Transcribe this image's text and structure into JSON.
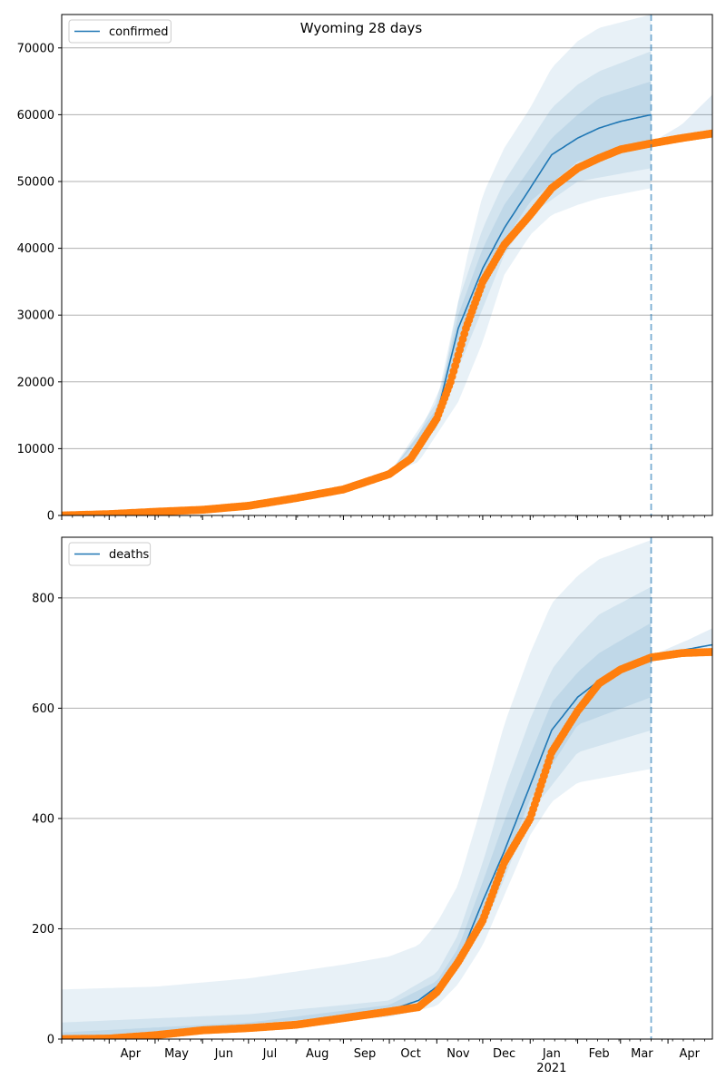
{
  "title": "Wyoming 28 days",
  "colors": {
    "line": "#1f77b4",
    "points": "#ff7f0e",
    "band": "#1f77b4",
    "grid": "#b0b0b0"
  },
  "chart_data": [
    {
      "type": "line",
      "legend": "confirmed",
      "legend_placement": "top-left",
      "grid": "horizontal",
      "x_range": [
        "2020-03-01",
        "2021-04-30"
      ],
      "forecast_start": "2021-03-21",
      "ylim": [
        0,
        75000
      ],
      "yticks": [
        0,
        10000,
        20000,
        30000,
        40000,
        50000,
        60000,
        70000
      ],
      "model_curve": [
        [
          "2020-03-01",
          0
        ],
        [
          "2020-04-01",
          300
        ],
        [
          "2020-05-01",
          600
        ],
        [
          "2020-06-01",
          900
        ],
        [
          "2020-07-01",
          1500
        ],
        [
          "2020-08-01",
          2700
        ],
        [
          "2020-09-01",
          4000
        ],
        [
          "2020-10-01",
          6300
        ],
        [
          "2020-10-15",
          9000
        ],
        [
          "2020-11-01",
          15000
        ],
        [
          "2020-11-15",
          28000
        ],
        [
          "2020-12-01",
          37000
        ],
        [
          "2020-12-15",
          43000
        ],
        [
          "2021-01-01",
          49000
        ],
        [
          "2021-01-15",
          54000
        ],
        [
          "2021-02-01",
          56500
        ],
        [
          "2021-02-15",
          58000
        ],
        [
          "2021-03-01",
          59000
        ],
        [
          "2021-03-21",
          60000
        ]
      ],
      "band_outer": {
        "low": [
          [
            "2020-10-01",
            6300
          ],
          [
            "2020-10-20",
            8000
          ],
          [
            "2020-11-15",
            17000
          ],
          [
            "2020-12-01",
            26000
          ],
          [
            "2020-12-15",
            36000
          ],
          [
            "2021-01-01",
            42000
          ],
          [
            "2021-01-15",
            45000
          ],
          [
            "2021-02-01",
            46500
          ],
          [
            "2021-02-15",
            47500
          ],
          [
            "2021-03-21",
            49000
          ]
        ],
        "high": [
          [
            "2020-10-01",
            6300
          ],
          [
            "2020-10-20",
            12000
          ],
          [
            "2020-11-05",
            20000
          ],
          [
            "2020-11-20",
            38000
          ],
          [
            "2020-12-01",
            48000
          ],
          [
            "2020-12-15",
            55000
          ],
          [
            "2021-01-01",
            61000
          ],
          [
            "2021-01-15",
            67000
          ],
          [
            "2021-02-01",
            71000
          ],
          [
            "2021-02-15",
            73000
          ],
          [
            "2021-03-21",
            75000
          ]
        ]
      },
      "band_mid": {
        "low": [
          [
            "2020-10-01",
            6300
          ],
          [
            "2020-11-01",
            13000
          ],
          [
            "2020-11-15",
            22000
          ],
          [
            "2020-12-01",
            31000
          ],
          [
            "2020-12-15",
            39000
          ],
          [
            "2021-01-01",
            45000
          ],
          [
            "2021-02-01",
            50000
          ],
          [
            "2021-03-21",
            52000
          ]
        ],
        "high": [
          [
            "2020-10-01",
            6300
          ],
          [
            "2020-11-01",
            17000
          ],
          [
            "2020-11-15",
            32000
          ],
          [
            "2020-12-01",
            43000
          ],
          [
            "2020-12-15",
            50000
          ],
          [
            "2021-01-01",
            56000
          ],
          [
            "2021-01-15",
            61000
          ],
          [
            "2021-02-01",
            64500
          ],
          [
            "2021-02-15",
            66500
          ],
          [
            "2021-03-21",
            69500
          ]
        ]
      },
      "band_inner": {
        "low": [
          [
            "2020-10-01",
            6300
          ],
          [
            "2020-11-01",
            14500
          ],
          [
            "2020-11-15",
            25000
          ],
          [
            "2020-12-01",
            34000
          ],
          [
            "2020-12-15",
            41000
          ],
          [
            "2021-01-01",
            47000
          ],
          [
            "2021-02-01",
            53000
          ],
          [
            "2021-03-21",
            55500
          ]
        ],
        "high": [
          [
            "2020-10-01",
            6300
          ],
          [
            "2020-11-01",
            16000
          ],
          [
            "2020-11-15",
            30000
          ],
          [
            "2020-12-01",
            40000
          ],
          [
            "2020-12-15",
            46500
          ],
          [
            "2021-01-01",
            52000
          ],
          [
            "2021-01-15",
            56500
          ],
          [
            "2021-02-01",
            60000
          ],
          [
            "2021-02-15",
            62500
          ],
          [
            "2021-03-21",
            65000
          ]
        ]
      },
      "forecast_band": {
        "low": [
          [
            "2021-03-21",
            55500
          ],
          [
            "2021-04-30",
            56500
          ]
        ],
        "high": [
          [
            "2021-03-21",
            55800
          ],
          [
            "2021-04-10",
            58500
          ],
          [
            "2021-04-30",
            63000
          ]
        ]
      },
      "observed": [
        [
          "2020-03-01",
          0
        ],
        [
          "2020-04-01",
          200
        ],
        [
          "2020-05-01",
          550
        ],
        [
          "2020-06-01",
          850
        ],
        [
          "2020-07-01",
          1450
        ],
        [
          "2020-08-01",
          2600
        ],
        [
          "2020-09-01",
          3900
        ],
        [
          "2020-10-01",
          6200
        ],
        [
          "2020-10-15",
          8500
        ],
        [
          "2020-11-01",
          14500
        ],
        [
          "2020-11-10",
          20000
        ],
        [
          "2020-11-20",
          28000
        ],
        [
          "2020-12-01",
          35000
        ],
        [
          "2020-12-15",
          40500
        ],
        [
          "2021-01-01",
          45000
        ],
        [
          "2021-01-15",
          49000
        ],
        [
          "2021-02-01",
          52000
        ],
        [
          "2021-02-15",
          53500
        ],
        [
          "2021-03-01",
          54800
        ],
        [
          "2021-03-21",
          55700
        ],
        [
          "2021-04-10",
          56500
        ],
        [
          "2021-04-30",
          57200
        ]
      ]
    },
    {
      "type": "line",
      "legend": "deaths",
      "legend_placement": "top-left",
      "grid": "horizontal",
      "x_range": [
        "2020-03-01",
        "2021-04-30"
      ],
      "forecast_start": "2021-03-21",
      "xticks": [
        "Apr",
        "May",
        "Jun",
        "Jul",
        "Aug",
        "Sep",
        "Oct",
        "Nov",
        "Dec",
        "Jan",
        "Feb",
        "Mar",
        "Apr"
      ],
      "year_label": "2021",
      "ylim": [
        0,
        910
      ],
      "yticks": [
        0,
        200,
        400,
        600,
        800
      ],
      "model_curve": [
        [
          "2020-03-01",
          0
        ],
        [
          "2020-04-01",
          2
        ],
        [
          "2020-05-01",
          6
        ],
        [
          "2020-06-01",
          15
        ],
        [
          "2020-07-01",
          22
        ],
        [
          "2020-08-01",
          30
        ],
        [
          "2020-09-01",
          40
        ],
        [
          "2020-10-01",
          52
        ],
        [
          "2020-10-20",
          70
        ],
        [
          "2020-11-01",
          95
        ],
        [
          "2020-11-15",
          140
        ],
        [
          "2020-12-01",
          250
        ],
        [
          "2020-12-15",
          340
        ],
        [
          "2021-01-01",
          460
        ],
        [
          "2021-01-15",
          560
        ],
        [
          "2021-02-01",
          620
        ],
        [
          "2021-02-15",
          650
        ],
        [
          "2021-03-01",
          670
        ],
        [
          "2021-03-21",
          690
        ],
        [
          "2021-04-10",
          705
        ],
        [
          "2021-04-30",
          715
        ]
      ],
      "band_outer": {
        "low": [
          [
            "2020-03-01",
            0
          ],
          [
            "2020-10-01",
            40
          ],
          [
            "2020-11-01",
            60
          ],
          [
            "2020-11-15",
            100
          ],
          [
            "2020-12-01",
            170
          ],
          [
            "2020-12-15",
            260
          ],
          [
            "2021-01-01",
            370
          ],
          [
            "2021-01-15",
            430
          ],
          [
            "2021-02-01",
            465
          ],
          [
            "2021-03-21",
            490
          ]
        ],
        "high": [
          [
            "2020-03-01",
            90
          ],
          [
            "2020-05-01",
            95
          ],
          [
            "2020-07-01",
            110
          ],
          [
            "2020-09-01",
            135
          ],
          [
            "2020-10-01",
            150
          ],
          [
            "2020-10-20",
            170
          ],
          [
            "2020-11-01",
            210
          ],
          [
            "2020-11-15",
            280
          ],
          [
            "2020-12-01",
            430
          ],
          [
            "2020-12-15",
            570
          ],
          [
            "2021-01-01",
            700
          ],
          [
            "2021-01-15",
            790
          ],
          [
            "2021-02-01",
            840
          ],
          [
            "2021-02-15",
            870
          ],
          [
            "2021-03-21",
            905
          ]
        ]
      },
      "band_mid": {
        "low": [
          [
            "2020-03-01",
            0
          ],
          [
            "2020-10-01",
            45
          ],
          [
            "2020-11-01",
            75
          ],
          [
            "2020-12-01",
            200
          ],
          [
            "2020-12-15",
            290
          ],
          [
            "2021-01-01",
            410
          ],
          [
            "2021-02-01",
            520
          ],
          [
            "2021-03-21",
            560
          ]
        ],
        "high": [
          [
            "2020-03-01",
            30
          ],
          [
            "2020-07-01",
            45
          ],
          [
            "2020-10-01",
            70
          ],
          [
            "2020-11-01",
            120
          ],
          [
            "2020-11-15",
            190
          ],
          [
            "2020-12-01",
            320
          ],
          [
            "2020-12-15",
            450
          ],
          [
            "2021-01-01",
            580
          ],
          [
            "2021-01-15",
            670
          ],
          [
            "2021-02-01",
            730
          ],
          [
            "2021-02-15",
            770
          ],
          [
            "2021-03-21",
            820
          ]
        ]
      },
      "band_inner": {
        "low": [
          [
            "2020-03-01",
            0
          ],
          [
            "2020-10-01",
            48
          ],
          [
            "2020-11-01",
            85
          ],
          [
            "2020-12-01",
            225
          ],
          [
            "2020-12-15",
            315
          ],
          [
            "2021-01-01",
            435
          ],
          [
            "2021-02-01",
            570
          ],
          [
            "2021-03-21",
            620
          ]
        ],
        "high": [
          [
            "2020-03-01",
            12
          ],
          [
            "2020-07-01",
            30
          ],
          [
            "2020-10-01",
            62
          ],
          [
            "2020-11-01",
            105
          ],
          [
            "2020-11-15",
            165
          ],
          [
            "2020-12-01",
            285
          ],
          [
            "2020-12-15",
            395
          ],
          [
            "2021-01-01",
            515
          ],
          [
            "2021-01-15",
            610
          ],
          [
            "2021-02-01",
            665
          ],
          [
            "2021-02-15",
            700
          ],
          [
            "2021-03-21",
            755
          ]
        ]
      },
      "forecast_band": {
        "low": [
          [
            "2021-03-21",
            685
          ],
          [
            "2021-04-30",
            700
          ]
        ],
        "high": [
          [
            "2021-03-21",
            695
          ],
          [
            "2021-04-15",
            725
          ],
          [
            "2021-04-30",
            745
          ]
        ]
      },
      "observed": [
        [
          "2020-03-01",
          0
        ],
        [
          "2020-04-01",
          1
        ],
        [
          "2020-05-01",
          7
        ],
        [
          "2020-06-01",
          16
        ],
        [
          "2020-07-01",
          20
        ],
        [
          "2020-08-01",
          26
        ],
        [
          "2020-09-01",
          38
        ],
        [
          "2020-10-01",
          50
        ],
        [
          "2020-10-20",
          58
        ],
        [
          "2020-11-01",
          85
        ],
        [
          "2020-11-15",
          140
        ],
        [
          "2020-12-01",
          215
        ],
        [
          "2020-12-15",
          320
        ],
        [
          "2021-01-01",
          400
        ],
        [
          "2021-01-15",
          520
        ],
        [
          "2021-02-01",
          595
        ],
        [
          "2021-02-15",
          645
        ],
        [
          "2021-03-01",
          670
        ],
        [
          "2021-03-21",
          692
        ],
        [
          "2021-04-10",
          700
        ],
        [
          "2021-04-30",
          702
        ]
      ]
    }
  ]
}
